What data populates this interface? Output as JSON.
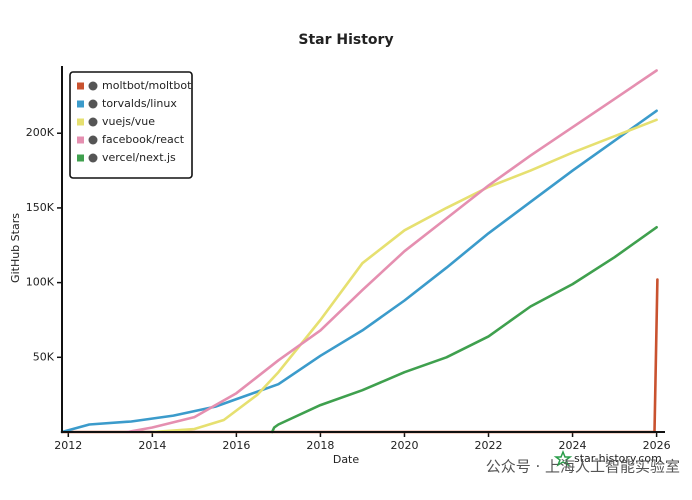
{
  "chart_data": {
    "type": "line",
    "title": "Star History",
    "xlabel": "Date",
    "ylabel": "GitHub Stars",
    "credit": "star-history.com",
    "watermark": "公众号 · 上海人工智能实验室",
    "xlim": [
      2011.85,
      2026.2
    ],
    "xticks": [
      2012,
      2014,
      2016,
      2018,
      2020,
      2022,
      2024,
      2026
    ],
    "ylim": [
      0,
      245000
    ],
    "yticks": [
      {
        "value": 50000,
        "label": "50K"
      },
      {
        "value": 100000,
        "label": "100K"
      },
      {
        "value": 150000,
        "label": "150K"
      },
      {
        "value": 200000,
        "label": "200K"
      }
    ],
    "grid": false,
    "legend": "upper left",
    "series": [
      {
        "name": "moltbot/moltbot",
        "color": "#c9522f",
        "x": [
          2011.85,
          2025.95,
          2026.02
        ],
        "values": [
          0,
          0,
          102000
        ]
      },
      {
        "name": "torvalds/linux",
        "color": "#3b9bcb",
        "x": [
          2011.85,
          2012.5,
          2013.5,
          2014.5,
          2015.5,
          2016,
          2017,
          2018,
          2019,
          2020,
          2021,
          2022,
          2023,
          2024,
          2025,
          2026
        ],
        "values": [
          0,
          5000,
          7000,
          11000,
          17000,
          22000,
          32000,
          51000,
          68000,
          88000,
          110000,
          133000,
          154000,
          175000,
          195000,
          215000
        ]
      },
      {
        "name": "vuejs/vue",
        "color": "#e6e070",
        "x": [
          2014,
          2015,
          2015.7,
          2016.5,
          2017,
          2018,
          2019,
          2020,
          2021,
          2022,
          2023,
          2024,
          2025,
          2026
        ],
        "values": [
          0,
          2000,
          8000,
          25000,
          40000,
          75000,
          113000,
          135000,
          150000,
          164000,
          175000,
          187000,
          198000,
          209000
        ]
      },
      {
        "name": "facebook/react",
        "color": "#e58fb0",
        "x": [
          2013.4,
          2014,
          2015,
          2016,
          2017,
          2018,
          2019,
          2020,
          2021,
          2022,
          2023,
          2024,
          2025,
          2026
        ],
        "values": [
          0,
          3000,
          10000,
          26000,
          48000,
          68000,
          95000,
          121000,
          143000,
          165000,
          185000,
          204000,
          223000,
          242000
        ]
      },
      {
        "name": "vercel/next.js",
        "color": "#3fa04e",
        "x": [
          2016.85,
          2016.9,
          2017,
          2018,
          2019,
          2020,
          2021,
          2022,
          2023,
          2024,
          2025,
          2026
        ],
        "values": [
          0,
          3000,
          5000,
          18000,
          28000,
          40000,
          50000,
          64000,
          84000,
          99000,
          117000,
          137000
        ]
      }
    ]
  }
}
